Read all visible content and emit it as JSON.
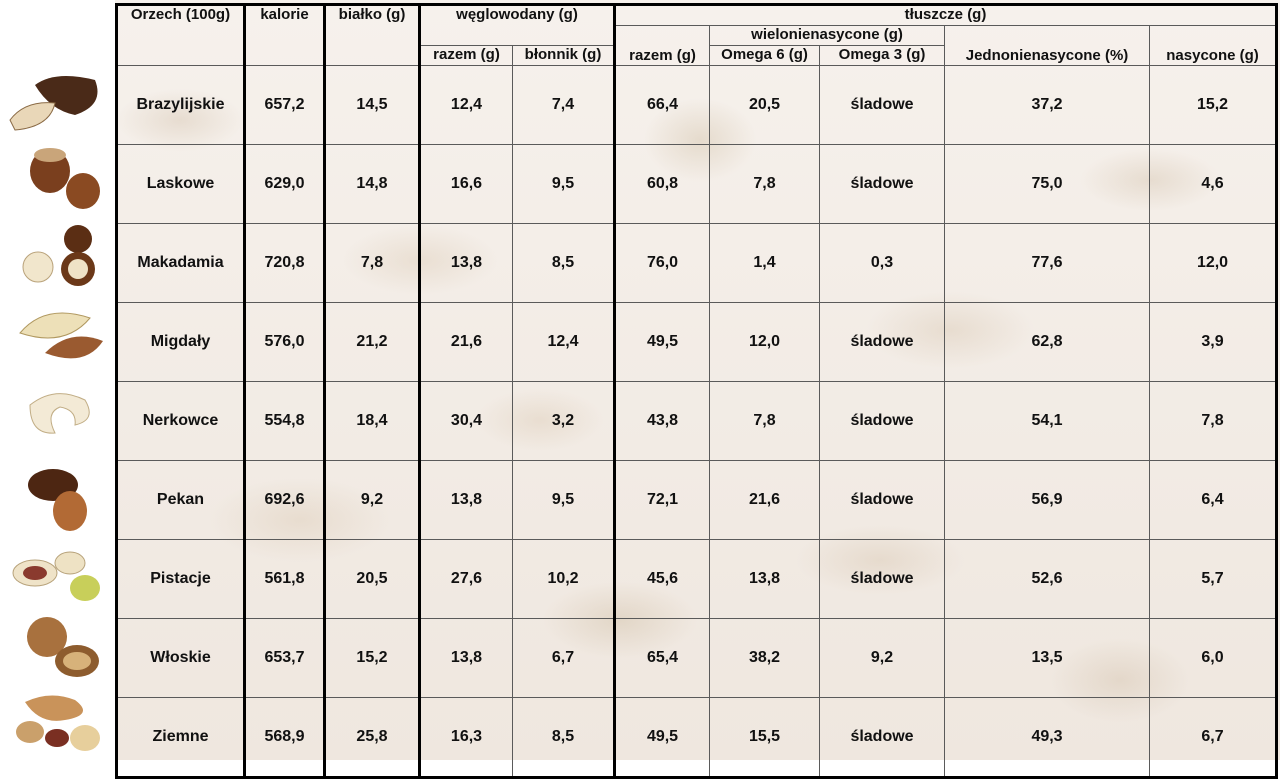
{
  "headers": {
    "nut": "Orzech (100g)",
    "calories": "kalorie",
    "protein": "białko (g)",
    "carbs": "węglowodany (g)",
    "carbs_total": "razem (g)",
    "carbs_fiber": "błonnik (g)",
    "fats": "tłuszcze (g)",
    "fats_total": "razem (g)",
    "polyunsaturated": "wielonienasycone (g)",
    "omega6": "Omega 6 (g)",
    "omega3": "Omega 3 (g)",
    "monounsaturated": "Jednonienasycone (%)",
    "saturated": "nasycone (g)"
  },
  "rows": [
    {
      "name": "Brazylijskie",
      "calories": "657,2",
      "protein": "14,5",
      "carbs_total": "12,4",
      "fiber": "7,4",
      "fat_total": "66,4",
      "omega6": "20,5",
      "omega3": "śladowe",
      "mono": "37,2",
      "saturated": "15,2",
      "icon": "brazil-nut-icon"
    },
    {
      "name": "Laskowe",
      "calories": "629,0",
      "protein": "14,8",
      "carbs_total": "16,6",
      "fiber": "9,5",
      "fat_total": "60,8",
      "omega6": "7,8",
      "omega3": "śladowe",
      "mono": "75,0",
      "saturated": "4,6",
      "icon": "hazelnut-icon"
    },
    {
      "name": "Makadamia",
      "calories": "720,8",
      "protein": "7,8",
      "carbs_total": "13,8",
      "fiber": "8,5",
      "fat_total": "76,0",
      "omega6": "1,4",
      "omega3": "0,3",
      "mono": "77,6",
      "saturated": "12,0",
      "icon": "macadamia-icon"
    },
    {
      "name": "Migdały",
      "calories": "576,0",
      "protein": "21,2",
      "carbs_total": "21,6",
      "fiber": "12,4",
      "fat_total": "49,5",
      "omega6": "12,0",
      "omega3": "śladowe",
      "mono": "62,8",
      "saturated": "3,9",
      "icon": "almond-icon"
    },
    {
      "name": "Nerkowce",
      "calories": "554,8",
      "protein": "18,4",
      "carbs_total": "30,4",
      "fiber": "3,2",
      "fat_total": "43,8",
      "omega6": "7,8",
      "omega3": "śladowe",
      "mono": "54,1",
      "saturated": "7,8",
      "icon": "cashew-icon"
    },
    {
      "name": "Pekan",
      "calories": "692,6",
      "protein": "9,2",
      "carbs_total": "13,8",
      "fiber": "9,5",
      "fat_total": "72,1",
      "omega6": "21,6",
      "omega3": "śladowe",
      "mono": "56,9",
      "saturated": "6,4",
      "icon": "pecan-icon"
    },
    {
      "name": "Pistacje",
      "calories": "561,8",
      "protein": "20,5",
      "carbs_total": "27,6",
      "fiber": "10,2",
      "fat_total": "45,6",
      "omega6": "13,8",
      "omega3": "śladowe",
      "mono": "52,6",
      "saturated": "5,7",
      "icon": "pistachio-icon"
    },
    {
      "name": "Włoskie",
      "calories": "653,7",
      "protein": "15,2",
      "carbs_total": "13,8",
      "fiber": "6,7",
      "fat_total": "65,4",
      "omega6": "38,2",
      "omega3": "9,2",
      "mono": "13,5",
      "saturated": "6,0",
      "icon": "walnut-icon"
    },
    {
      "name": "Ziemne",
      "calories": "568,9",
      "protein": "25,8",
      "carbs_total": "16,3",
      "fiber": "8,5",
      "fat_total": "49,5",
      "omega6": "15,5",
      "omega3": "śladowe",
      "mono": "49,3",
      "saturated": "6,7",
      "icon": "peanut-icon"
    }
  ]
}
